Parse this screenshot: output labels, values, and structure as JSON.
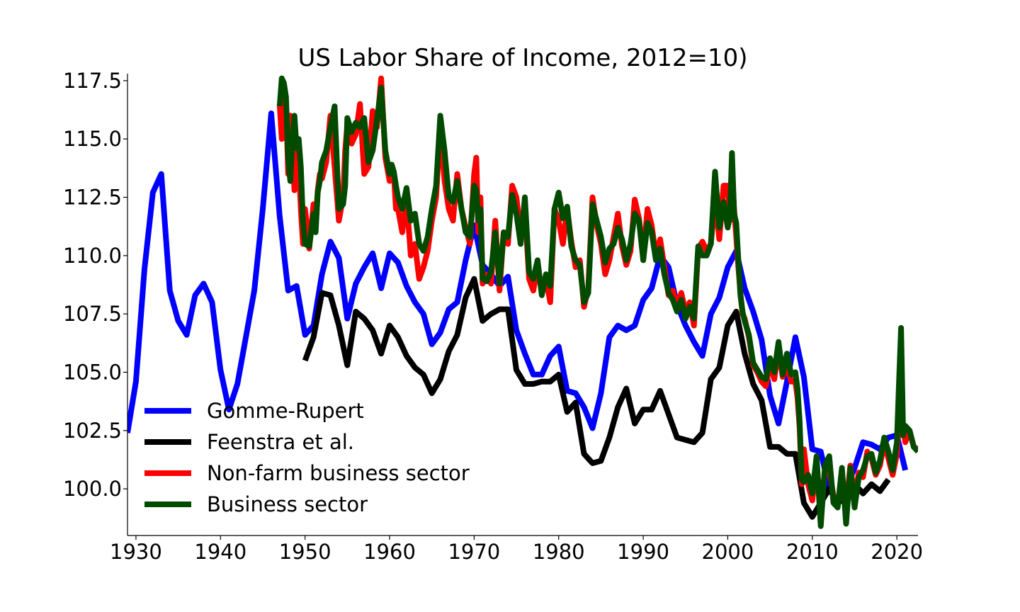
{
  "chart_data": {
    "type": "line",
    "title": "US Labor Share of Income, 2012=10)",
    "xlabel": "",
    "ylabel": "",
    "xlim": [
      1929,
      2022.5
    ],
    "ylim": [
      98.0,
      117.8
    ],
    "xticks": [
      1930,
      1940,
      1950,
      1960,
      1970,
      1980,
      1990,
      2000,
      2010,
      2020
    ],
    "xtick_labels": [
      "1930",
      "1940",
      "1950",
      "1960",
      "1970",
      "1980",
      "1990",
      "2000",
      "2010",
      "2020"
    ],
    "yticks": [
      100.0,
      102.5,
      105.0,
      107.5,
      110.0,
      112.5,
      115.0,
      117.5
    ],
    "ytick_labels": [
      "100.0",
      "102.5",
      "105.0",
      "107.5",
      "110.0",
      "112.5",
      "115.0",
      "117.5"
    ],
    "legend_position": "lower-left",
    "series": [
      {
        "name": "Gomme-Rupert",
        "color": "#0000ff",
        "x": [
          1929,
          1930,
          1931,
          1932,
          1933,
          1934,
          1935,
          1936,
          1937,
          1938,
          1939,
          1940,
          1941,
          1942,
          1943,
          1944,
          1945,
          1946,
          1947,
          1948,
          1949,
          1950,
          1951,
          1952,
          1953,
          1954,
          1955,
          1956,
          1957,
          1958,
          1959,
          1960,
          1961,
          1962,
          1963,
          1964,
          1965,
          1966,
          1967,
          1968,
          1969,
          1970,
          1971,
          1972,
          1973,
          1974,
          1975,
          1976,
          1977,
          1978,
          1979,
          1980,
          1981,
          1982,
          1983,
          1984,
          1985,
          1986,
          1987,
          1988,
          1989,
          1990,
          1991,
          1992,
          1993,
          1994,
          1995,
          1996,
          1997,
          1998,
          1999,
          2000,
          2001,
          2002,
          2003,
          2004,
          2005,
          2006,
          2007,
          2008,
          2009,
          2010,
          2011,
          2012,
          2013,
          2014,
          2015,
          2016,
          2017,
          2018,
          2019,
          2020,
          2021
        ],
        "y": [
          102.4,
          104.6,
          109.4,
          112.7,
          113.5,
          108.5,
          107.2,
          106.6,
          108.3,
          108.8,
          108.0,
          105.1,
          103.4,
          104.5,
          106.5,
          108.5,
          112.0,
          116.1,
          111.7,
          108.5,
          108.7,
          106.6,
          107.0,
          109.2,
          110.6,
          109.9,
          107.3,
          108.8,
          109.5,
          110.1,
          108.6,
          110.1,
          109.7,
          108.7,
          108.0,
          107.5,
          106.2,
          106.7,
          107.7,
          108.0,
          109.8,
          111.3,
          109.6,
          109.2,
          108.7,
          109.1,
          106.8,
          105.8,
          104.9,
          104.9,
          105.7,
          106.1,
          104.2,
          104.1,
          103.5,
          102.6,
          104.1,
          106.5,
          107.0,
          106.8,
          107.0,
          108.1,
          108.6,
          110.0,
          109.5,
          107.9,
          107.0,
          106.3,
          105.7,
          107.5,
          108.2,
          109.5,
          110.2,
          108.6,
          107.6,
          106.4,
          104.0,
          102.8,
          104.6,
          106.5,
          104.8,
          101.7,
          101.6,
          100.0,
          99.4,
          100.0,
          100.9,
          102.0,
          101.9,
          101.7,
          102.2,
          102.3,
          100.8
        ]
      },
      {
        "name": "Feenstra et al.",
        "color": "#000000",
        "x": [
          1950,
          1951,
          1952,
          1953,
          1954,
          1955,
          1956,
          1957,
          1958,
          1959,
          1960,
          1961,
          1962,
          1963,
          1964,
          1965,
          1966,
          1967,
          1968,
          1969,
          1970,
          1971,
          1972,
          1973,
          1974,
          1975,
          1976,
          1977,
          1978,
          1979,
          1980,
          1981,
          1982,
          1983,
          1984,
          1985,
          1986,
          1987,
          1988,
          1989,
          1990,
          1991,
          1992,
          1993,
          1994,
          1995,
          1996,
          1997,
          1998,
          1999,
          2000,
          2001,
          2002,
          2003,
          2004,
          2005,
          2006,
          2007,
          2008,
          2009,
          2010,
          2011,
          2012,
          2013,
          2014,
          2015,
          2016,
          2017,
          2018,
          2019
        ],
        "y": [
          105.5,
          106.5,
          108.4,
          108.3,
          107.0,
          105.3,
          107.6,
          107.3,
          106.8,
          105.8,
          107.0,
          106.5,
          105.7,
          105.2,
          104.9,
          104.1,
          104.7,
          105.9,
          106.6,
          108.2,
          109.0,
          107.2,
          107.5,
          107.7,
          107.7,
          105.1,
          104.5,
          104.5,
          104.6,
          104.6,
          104.9,
          103.3,
          103.7,
          101.5,
          101.1,
          101.2,
          102.2,
          103.5,
          104.3,
          102.8,
          103.4,
          103.4,
          104.2,
          103.2,
          102.2,
          102.1,
          102.0,
          102.4,
          104.7,
          105.2,
          107.0,
          107.6,
          105.8,
          104.5,
          103.8,
          101.8,
          101.8,
          101.5,
          101.5,
          99.4,
          98.8,
          99.4,
          100.0,
          99.4,
          99.6,
          100.2,
          99.8,
          100.2,
          99.9,
          100.4
        ]
      },
      {
        "name": "Non-farm business sector",
        "color": "#ff0000",
        "x": [
          1947.0,
          1947.25,
          1947.5,
          1947.75,
          1948.0,
          1948.25,
          1948.5,
          1948.75,
          1949.0,
          1949.25,
          1949.5,
          1949.75,
          1950.0,
          1950.5,
          1951.0,
          1951.25,
          1951.5,
          1951.75,
          1952.0,
          1952.5,
          1953.0,
          1953.5,
          1954.0,
          1954.5,
          1954.75,
          1955.0,
          1955.5,
          1956.0,
          1956.5,
          1957.0,
          1957.5,
          1958.0,
          1958.5,
          1959.0,
          1959.5,
          1960.0,
          1960.25,
          1960.5,
          1960.75,
          1961.0,
          1961.5,
          1962.0,
          1962.5,
          1963.0,
          1963.5,
          1964.0,
          1964.5,
          1965.0,
          1965.5,
          1966.0,
          1966.5,
          1967.0,
          1967.5,
          1968.0,
          1968.5,
          1969.0,
          1969.5,
          1970.0,
          1970.25,
          1970.5,
          1970.75,
          1971.0,
          1971.5,
          1972.0,
          1972.5,
          1973.0,
          1973.5,
          1974.0,
          1974.5,
          1975.0,
          1975.5,
          1976.0,
          1976.5,
          1977.0,
          1977.5,
          1978.0,
          1978.5,
          1979.0,
          1979.5,
          1980.0,
          1980.5,
          1981.0,
          1981.5,
          1982.0,
          1982.5,
          1983.0,
          1983.5,
          1984.0,
          1984.5,
          1985.0,
          1985.5,
          1986.0,
          1986.5,
          1987.0,
          1987.5,
          1988.0,
          1988.5,
          1989.0,
          1989.5,
          1990.0,
          1990.5,
          1991.0,
          1991.5,
          1992.0,
          1992.5,
          1993.0,
          1993.5,
          1994.0,
          1994.5,
          1995.0,
          1995.5,
          1996.0,
          1996.5,
          1997.0,
          1997.5,
          1998.0,
          1998.5,
          1999.0,
          1999.5,
          2000.0,
          2000.25,
          2000.5,
          2000.75,
          2001.0,
          2001.25,
          2001.5,
          2001.75,
          2002.0,
          2002.5,
          2003.0,
          2003.5,
          2004.0,
          2004.5,
          2005.0,
          2005.5,
          2006.0,
          2006.5,
          2007.0,
          2007.5,
          2008.0,
          2008.25,
          2008.5,
          2008.75,
          2009.0,
          2009.5,
          2010.0,
          2010.5,
          2011.0,
          2011.5,
          2012.0,
          2012.5,
          2013.0,
          2013.5,
          2014.0,
          2014.5,
          2015.0,
          2015.5,
          2016.0,
          2016.5,
          2017.0,
          2017.5,
          2018.0,
          2018.5,
          2019.0,
          2019.5,
          2020.0,
          2020.25,
          2020.5,
          2020.75,
          2021.0,
          2021.5,
          2022.0,
          2022.5
        ],
        "y": [
          116.5,
          115.0,
          117.3,
          116.5,
          113.5,
          116.0,
          114.5,
          112.8,
          115.0,
          114.0,
          112.0,
          110.5,
          112.0,
          110.3,
          112.2,
          111.5,
          112.8,
          113.5,
          113.3,
          114.0,
          116.0,
          113.8,
          111.5,
          112.5,
          114.5,
          115.6,
          114.8,
          115.2,
          116.5,
          113.5,
          113.8,
          116.2,
          115.5,
          117.6,
          114.2,
          113.2,
          113.8,
          113.5,
          112.0,
          112.0,
          111.0,
          112.5,
          110.0,
          110.5,
          109.0,
          109.5,
          110.2,
          111.5,
          112.5,
          115.5,
          113.2,
          112.0,
          111.5,
          113.5,
          112.0,
          111.2,
          110.5,
          113.5,
          114.2,
          111.0,
          112.5,
          108.8,
          109.2,
          108.8,
          111.5,
          108.5,
          111.0,
          110.5,
          113.0,
          112.5,
          111.0,
          112.0,
          109.0,
          108.5,
          109.5,
          108.6,
          109.0,
          108.0,
          112.0,
          111.5,
          110.5,
          112.0,
          110.6,
          109.5,
          109.8,
          107.8,
          108.6,
          112.5,
          111.3,
          110.5,
          109.2,
          109.8,
          110.8,
          111.8,
          110.4,
          109.6,
          110.2,
          112.4,
          111.6,
          110.0,
          112.0,
          111.3,
          110.0,
          110.7,
          109.5,
          108.3,
          108.5,
          107.8,
          108.4,
          107.6,
          108.0,
          107.0,
          110.3,
          110.6,
          110.2,
          110.5,
          112.5,
          110.7,
          113.0,
          113.0,
          111.5,
          113.6,
          112.0,
          110.8,
          109.5,
          108.4,
          107.5,
          107.3,
          106.5,
          105.3,
          105.0,
          104.6,
          104.4,
          105.4,
          104.7,
          106.0,
          104.8,
          105.3,
          104.6,
          104.6,
          103.9,
          102.6,
          100.2,
          101.7,
          100.2,
          99.5,
          101.2,
          99.0,
          100.8,
          100.8,
          99.7,
          99.3,
          100.4,
          99.2,
          101.0,
          99.5,
          100.7,
          100.5,
          101.6,
          101.3,
          100.6,
          101.0,
          102.0,
          101.3,
          100.6,
          101.5,
          103.5,
          102.3,
          102.7,
          102.0,
          102.5,
          101.8,
          101.7
        ]
      },
      {
        "name": "Business sector",
        "color": "#004b00",
        "x": [
          1947.0,
          1947.25,
          1947.5,
          1947.75,
          1948.0,
          1948.25,
          1948.5,
          1948.75,
          1949.0,
          1949.25,
          1949.5,
          1949.75,
          1950.0,
          1950.5,
          1951.0,
          1951.25,
          1951.5,
          1951.75,
          1952.0,
          1952.5,
          1953.0,
          1953.5,
          1954.0,
          1954.5,
          1954.75,
          1955.0,
          1955.5,
          1956.0,
          1956.5,
          1957.0,
          1957.5,
          1958.0,
          1958.5,
          1959.0,
          1959.5,
          1960.0,
          1960.25,
          1960.5,
          1960.75,
          1961.0,
          1961.5,
          1962.0,
          1962.5,
          1963.0,
          1963.5,
          1964.0,
          1964.5,
          1965.0,
          1965.5,
          1966.0,
          1966.5,
          1967.0,
          1967.5,
          1968.0,
          1968.5,
          1969.0,
          1969.5,
          1970.0,
          1970.25,
          1970.5,
          1970.75,
          1971.0,
          1971.5,
          1972.0,
          1972.5,
          1973.0,
          1973.5,
          1974.0,
          1974.5,
          1975.0,
          1975.5,
          1976.0,
          1976.5,
          1977.0,
          1977.5,
          1978.0,
          1978.5,
          1979.0,
          1979.5,
          1980.0,
          1980.5,
          1981.0,
          1981.5,
          1982.0,
          1982.5,
          1983.0,
          1983.5,
          1984.0,
          1984.5,
          1985.0,
          1985.5,
          1986.0,
          1986.5,
          1987.0,
          1987.5,
          1988.0,
          1988.5,
          1989.0,
          1989.5,
          1990.0,
          1990.5,
          1991.0,
          1991.5,
          1992.0,
          1992.5,
          1993.0,
          1993.5,
          1994.0,
          1994.5,
          1995.0,
          1995.5,
          1996.0,
          1996.5,
          1997.0,
          1997.5,
          1998.0,
          1998.5,
          1999.0,
          1999.5,
          2000.0,
          2000.25,
          2000.5,
          2000.75,
          2001.0,
          2001.25,
          2001.5,
          2001.75,
          2002.0,
          2002.5,
          2003.0,
          2003.5,
          2004.0,
          2004.5,
          2005.0,
          2005.5,
          2006.0,
          2006.5,
          2007.0,
          2007.5,
          2008.0,
          2008.25,
          2008.5,
          2008.75,
          2009.0,
          2009.5,
          2010.0,
          2010.5,
          2011.0,
          2011.5,
          2012.0,
          2012.5,
          2013.0,
          2013.5,
          2014.0,
          2014.5,
          2015.0,
          2015.5,
          2016.0,
          2016.5,
          2017.0,
          2017.5,
          2018.0,
          2018.5,
          2019.0,
          2019.5,
          2020.0,
          2020.25,
          2020.5,
          2020.75,
          2021.0,
          2021.5,
          2022.0,
          2022.5
        ],
        "y": [
          116.4,
          117.6,
          117.4,
          116.8,
          114.2,
          113.2,
          115.0,
          116.0,
          114.6,
          115.0,
          113.8,
          111.5,
          110.5,
          110.4,
          111.8,
          111.0,
          112.7,
          113.2,
          114.0,
          114.5,
          115.5,
          116.4,
          112.0,
          112.2,
          113.0,
          115.9,
          115.3,
          115.7,
          115.5,
          115.9,
          114.0,
          114.5,
          115.8,
          117.2,
          114.5,
          113.5,
          113.9,
          113.6,
          113.0,
          112.5,
          112.0,
          112.9,
          111.5,
          111.8,
          110.5,
          110.2,
          110.8,
          112.0,
          113.0,
          116.0,
          114.5,
          112.5,
          112.3,
          113.2,
          112.0,
          111.0,
          110.8,
          113.0,
          112.8,
          111.5,
          112.0,
          109.0,
          108.9,
          109.3,
          111.0,
          108.8,
          111.0,
          110.8,
          112.6,
          111.8,
          110.5,
          112.5,
          109.3,
          109.0,
          109.8,
          108.3,
          109.2,
          108.7,
          112.0,
          112.7,
          111.6,
          112.1,
          110.4,
          109.8,
          109.6,
          108.0,
          108.4,
          112.2,
          111.5,
          110.8,
          109.7,
          110.3,
          110.5,
          111.2,
          110.7,
          109.8,
          110.5,
          111.8,
          111.5,
          109.8,
          111.4,
          111.0,
          109.8,
          110.3,
          109.2,
          108.4,
          108.1,
          107.6,
          108.1,
          107.3,
          107.8,
          107.3,
          110.4,
          110.0,
          110.0,
          110.5,
          113.6,
          111.2,
          112.3,
          111.2,
          111.7,
          114.4,
          111.8,
          111.4,
          109.8,
          108.3,
          107.6,
          107.2,
          106.6,
          105.4,
          105.1,
          104.8,
          104.7,
          105.6,
          105.0,
          106.3,
          104.9,
          105.8,
          104.9,
          105.0,
          104.3,
          102.9,
          100.4,
          100.3,
          100.6,
          99.8,
          101.4,
          98.4,
          101.0,
          101.4,
          99.4,
          99.2,
          100.9,
          98.5,
          100.9,
          99.2,
          100.5,
          100.8,
          101.4,
          101.5,
          100.7,
          101.2,
          102.2,
          101.6,
          100.8,
          102.0,
          104.5,
          106.9,
          102.3,
          102.7,
          102.5,
          101.8,
          101.6
        ]
      }
    ]
  }
}
